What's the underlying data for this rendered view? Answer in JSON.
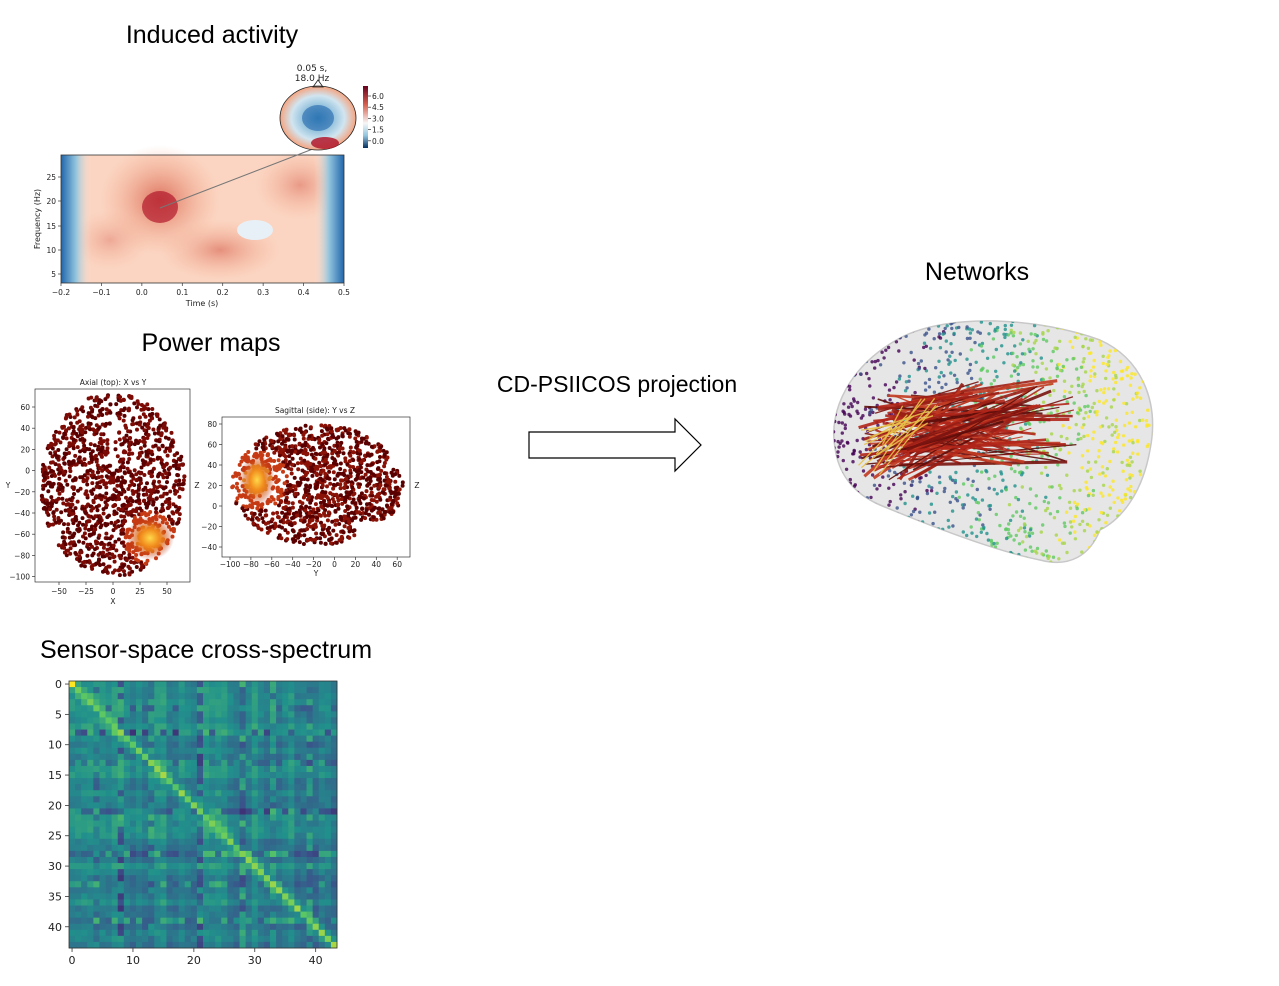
{
  "titles": {
    "induced": "Induced activity",
    "power": "Power maps",
    "cross": "Sensor-space cross-spectrum",
    "networks": "Networks"
  },
  "arrow_label": "CD-PSIICOS projection",
  "induced_plot": {
    "topo_label_line1": "0.05 s,",
    "topo_label_line2": "18.0 Hz",
    "colorbar_ticks": [
      "6.0",
      "4.5",
      "3.0",
      "1.5",
      "0.0"
    ],
    "xlabel": "Time (s)",
    "ylabel": "Frequency (Hz)",
    "xticks": [
      "−0.2",
      "−0.1",
      "0.0",
      "0.1",
      "0.2",
      "0.3",
      "0.4",
      "0.5"
    ],
    "yticks": [
      "25",
      "20",
      "15",
      "10",
      "5"
    ]
  },
  "axial_plot": {
    "title": "Axial (top): X vs Y",
    "xlabel": "X",
    "ylabel": "Y",
    "xticks": [
      "−50",
      "−25",
      "0",
      "25",
      "50"
    ],
    "yticks": [
      "60",
      "40",
      "20",
      "0",
      "−20",
      "−40",
      "−60",
      "−80",
      "−100"
    ]
  },
  "sagittal_plot": {
    "title": "Sagittal (side): Y vs Z",
    "xlabel": "Y",
    "ylabel": "Z",
    "right_label": "Z",
    "xticks": [
      "−100",
      "−80",
      "−60",
      "−40",
      "−20",
      "0",
      "20",
      "40",
      "60"
    ],
    "yticks": [
      "80",
      "60",
      "40",
      "20",
      "0",
      "−20",
      "−40"
    ]
  },
  "cross_plot": {
    "xticks": [
      "0",
      "10",
      "20",
      "30",
      "40"
    ],
    "yticks": [
      "0",
      "5",
      "10",
      "15",
      "20",
      "25",
      "30",
      "35",
      "40"
    ],
    "size": 44
  }
}
